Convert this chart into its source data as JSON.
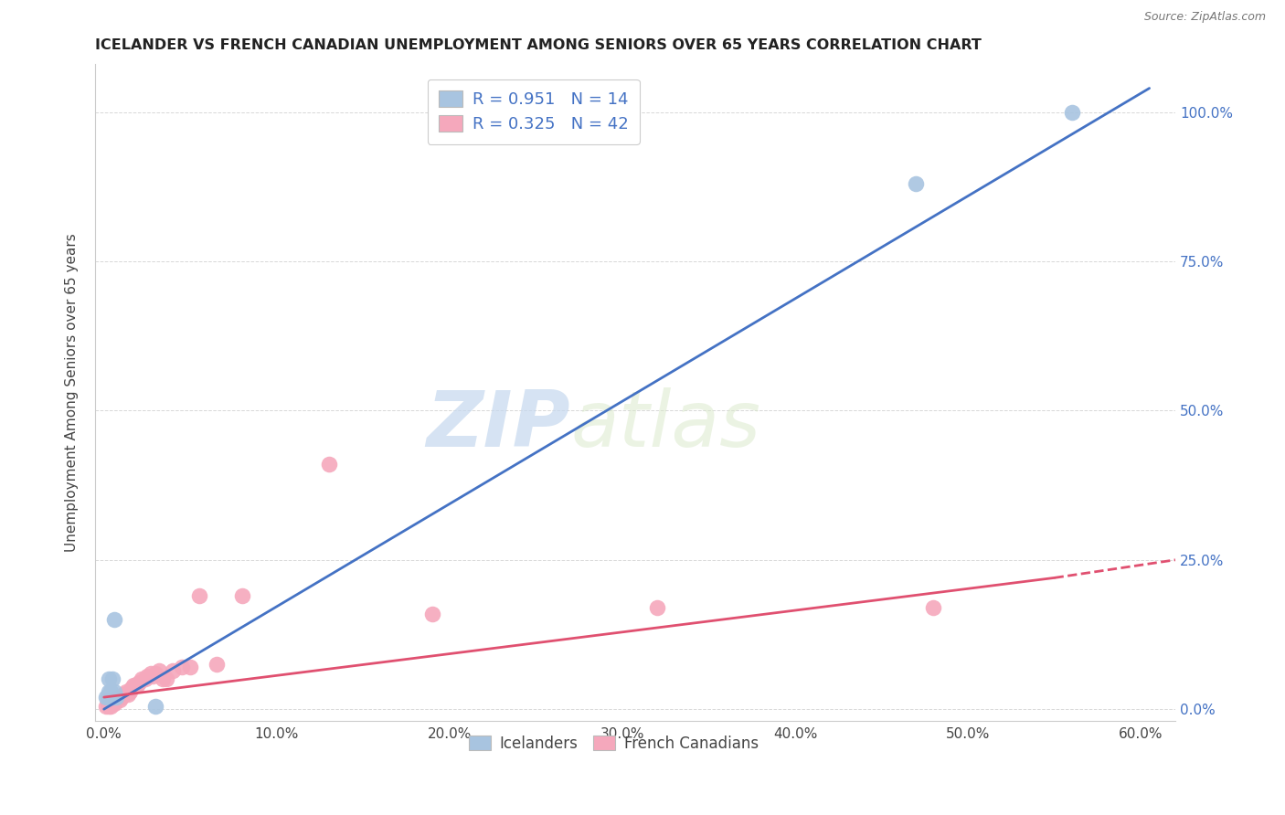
{
  "title": "ICELANDER VS FRENCH CANADIAN UNEMPLOYMENT AMONG SENIORS OVER 65 YEARS CORRELATION CHART",
  "source": "Source: ZipAtlas.com",
  "ylabel": "Unemployment Among Seniors over 65 years",
  "ylabel_ticks_right": [
    "0.0%",
    "25.0%",
    "50.0%",
    "75.0%",
    "100.0%"
  ],
  "xlabel_ticks": [
    "0.0%",
    "10.0%",
    "20.0%",
    "30.0%",
    "40.0%",
    "50.0%",
    "60.0%"
  ],
  "legend_top": [
    {
      "label": "Icelanders",
      "color": "#a8c4e0",
      "R": "0.951",
      "N": "14"
    },
    {
      "label": "French Canadians",
      "color": "#f5a8bc",
      "R": "0.325",
      "N": "42"
    }
  ],
  "watermark_zip": "ZIP",
  "watermark_atlas": "atlas",
  "icelanders": {
    "scatter_color": "#a8c4e0",
    "line_color": "#4472c4",
    "scatter_x": [
      0.001,
      0.002,
      0.003,
      0.003,
      0.004,
      0.004,
      0.005,
      0.005,
      0.006,
      0.006,
      0.007,
      0.03,
      0.47,
      0.56
    ],
    "scatter_y": [
      0.02,
      0.02,
      0.03,
      0.05,
      0.03,
      0.02,
      0.02,
      0.05,
      0.03,
      0.15,
      0.02,
      0.005,
      0.88,
      1.0
    ],
    "trend_x0": 0.0,
    "trend_y0": 0.0,
    "trend_x1": 0.605,
    "trend_y1": 1.04
  },
  "french_canadians": {
    "scatter_color": "#f5a8bc",
    "line_color": "#e05070",
    "scatter_x": [
      0.001,
      0.002,
      0.002,
      0.003,
      0.003,
      0.004,
      0.004,
      0.005,
      0.006,
      0.007,
      0.008,
      0.009,
      0.01,
      0.011,
      0.012,
      0.013,
      0.014,
      0.015,
      0.016,
      0.017,
      0.018,
      0.019,
      0.02,
      0.022,
      0.024,
      0.025,
      0.027,
      0.028,
      0.03,
      0.032,
      0.034,
      0.036,
      0.04,
      0.045,
      0.05,
      0.055,
      0.065,
      0.08,
      0.13,
      0.19,
      0.32,
      0.48
    ],
    "scatter_y": [
      0.005,
      0.01,
      0.015,
      0.005,
      0.01,
      0.005,
      0.015,
      0.01,
      0.01,
      0.015,
      0.02,
      0.015,
      0.02,
      0.025,
      0.025,
      0.03,
      0.025,
      0.03,
      0.035,
      0.04,
      0.04,
      0.04,
      0.045,
      0.05,
      0.05,
      0.055,
      0.06,
      0.055,
      0.06,
      0.065,
      0.05,
      0.05,
      0.065,
      0.07,
      0.07,
      0.19,
      0.075,
      0.19,
      0.41,
      0.16,
      0.17,
      0.17
    ],
    "trend_solid_x0": 0.0,
    "trend_solid_y0": 0.02,
    "trend_solid_x1": 0.55,
    "trend_solid_y1": 0.22,
    "trend_dash_x0": 0.55,
    "trend_dash_y0": 0.22,
    "trend_dash_x1": 0.62,
    "trend_dash_y1": 0.25
  },
  "xlim": [
    -0.005,
    0.62
  ],
  "ylim": [
    -0.02,
    1.08
  ],
  "x_ticks": [
    0.0,
    0.1,
    0.2,
    0.3,
    0.4,
    0.5,
    0.6
  ],
  "y_ticks": [
    0.0,
    0.25,
    0.5,
    0.75,
    1.0
  ],
  "background_color": "#ffffff",
  "grid_color": "#d8d8d8"
}
